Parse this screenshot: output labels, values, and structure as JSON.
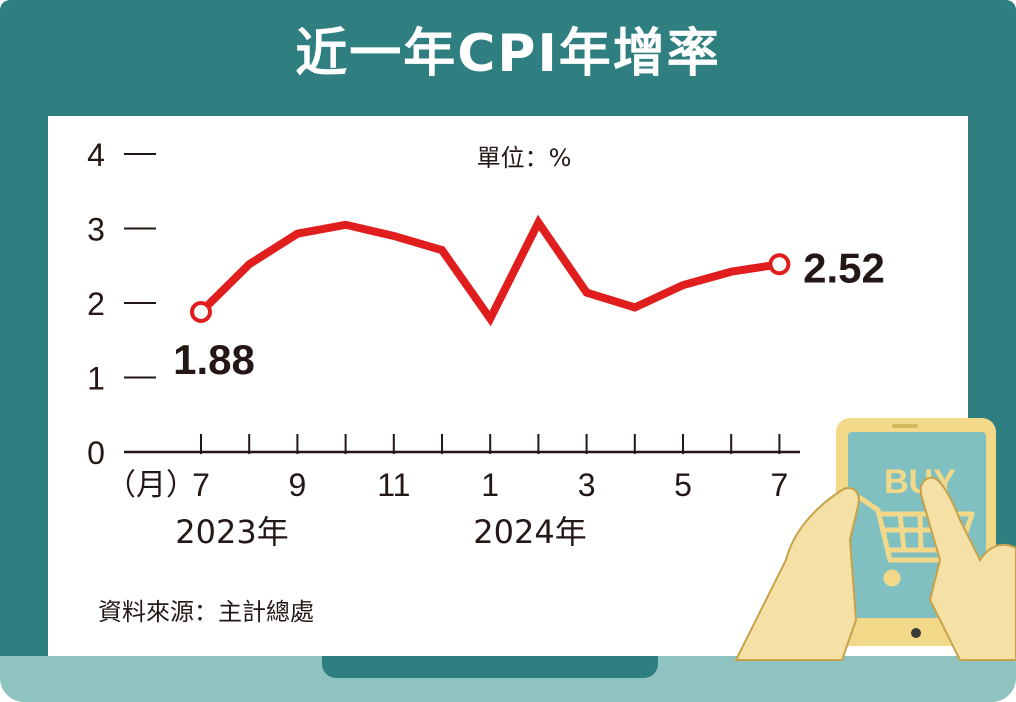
{
  "title": "近一年CPI年增率",
  "unit_label": "單位：%",
  "source": "資料來源：主計總處",
  "month_prefix": "（月）",
  "year_labels": [
    "2023年",
    "2024年"
  ],
  "cart_sign": "BUY",
  "colors": {
    "frame": "#2f7e80",
    "base": "#8fc3c0",
    "line": "#e01e1e",
    "text": "#231815",
    "tablet": "#f2d98a",
    "tablet_screen": "#80c0c0",
    "hand": "#f5e1a6"
  },
  "chart_data": {
    "type": "line",
    "title": "近一年CPI年增率",
    "unit": "%",
    "categories": [
      "2023-07",
      "2023-08",
      "2023-09",
      "2023-10",
      "2023-11",
      "2023-12",
      "2024-01",
      "2024-02",
      "2024-03",
      "2024-04",
      "2024-05",
      "2024-06",
      "2024-07"
    ],
    "values": [
      1.88,
      2.52,
      2.93,
      3.05,
      2.9,
      2.71,
      1.79,
      3.08,
      2.14,
      1.94,
      2.24,
      2.42,
      2.52
    ],
    "x_tick_labels": [
      "7",
      "9",
      "11",
      "1",
      "3",
      "5",
      "7"
    ],
    "ylim": [
      0,
      4
    ],
    "y_ticks": [
      0,
      1,
      2,
      3,
      4
    ],
    "annotations": [
      {
        "category": "2023-07",
        "text": "1.88"
      },
      {
        "category": "2024-07",
        "text": "2.52"
      }
    ],
    "grid": false,
    "legend": "none"
  }
}
